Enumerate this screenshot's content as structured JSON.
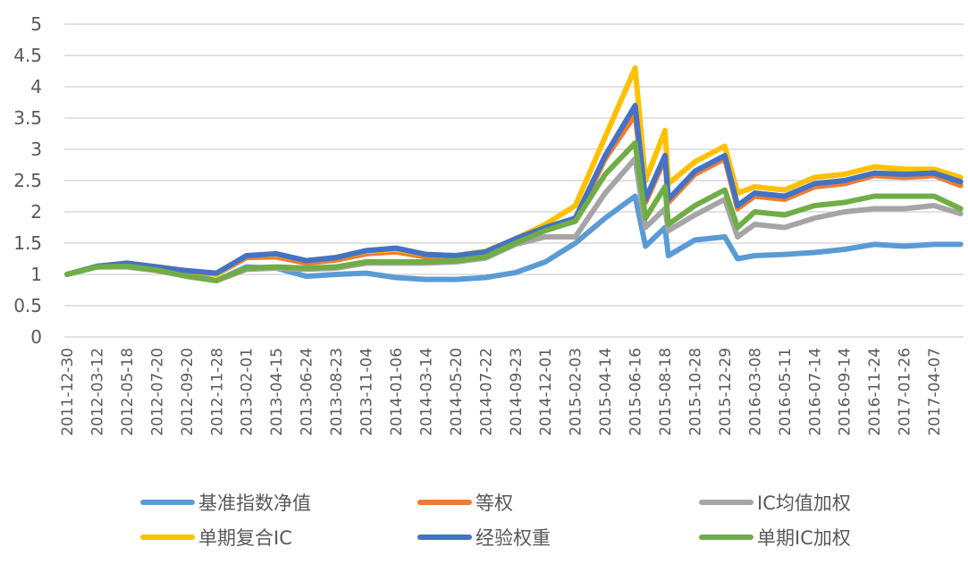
{
  "chart_data": {
    "type": "line",
    "title": "",
    "xlabel": "",
    "ylabel": "",
    "ylim": [
      0,
      5
    ],
    "yticks": [
      "0",
      "0.5",
      "1",
      "1.5",
      "2",
      "2.5",
      "3",
      "3.5",
      "4",
      "4.5",
      "5"
    ],
    "grid": true,
    "legend_position": "bottom",
    "categories": [
      "2011-12-30",
      "2012-03-12",
      "2012-05-18",
      "2012-07-20",
      "2012-09-20",
      "2012-11-28",
      "2013-02-01",
      "2013-04-15",
      "2013-06-24",
      "2013-08-23",
      "2013-11-04",
      "2014-01-06",
      "2014-03-14",
      "2014-05-20",
      "2014-07-22",
      "2014-09-23",
      "2014-12-01",
      "2015-02-03",
      "2015-04-14",
      "2015-06-16",
      "2015-08-18",
      "2015-10-28",
      "2015-12-29",
      "2016-03-08",
      "2016-05-11",
      "2016-07-14",
      "2016-09-14",
      "2016-11-24",
      "2017-01-26",
      "2017-04-07"
    ],
    "x": [
      "2011-12-30",
      "2012-03-12",
      "2012-05-18",
      "2012-07-20",
      "2012-09-20",
      "2012-11-28",
      "2013-02-01",
      "2013-04-15",
      "2013-06-24",
      "2013-08-23",
      "2013-11-04",
      "2014-01-06",
      "2014-03-14",
      "2014-05-20",
      "2014-07-22",
      "2014-09-23",
      "2014-12-01",
      "2015-02-03",
      "2015-04-14",
      "2015-06-16",
      "2015-07-08",
      "2015-08-18",
      "2015-08-26",
      "2015-10-28",
      "2015-12-29",
      "2016-01-28",
      "2016-03-08",
      "2016-05-11",
      "2016-07-14",
      "2016-09-14",
      "2016-11-24",
      "2017-01-26",
      "2017-04-07",
      "2017-06-09"
    ],
    "series": [
      {
        "name": "基准指数净值",
        "color": "#5B9BD5",
        "values": [
          1.0,
          1.12,
          1.15,
          1.08,
          1.0,
          0.9,
          1.12,
          1.1,
          0.97,
          1.0,
          1.02,
          0.95,
          0.92,
          0.92,
          0.95,
          1.03,
          1.2,
          1.5,
          1.9,
          2.25,
          1.45,
          1.75,
          1.3,
          1.55,
          1.6,
          1.25,
          1.3,
          1.32,
          1.35,
          1.4,
          1.48,
          1.45,
          1.48,
          1.48
        ]
      },
      {
        "name": "等权",
        "color": "#ED7D31",
        "values": [
          1.0,
          1.13,
          1.17,
          1.12,
          1.05,
          1.0,
          1.27,
          1.28,
          1.18,
          1.23,
          1.33,
          1.36,
          1.28,
          1.27,
          1.33,
          1.53,
          1.72,
          1.85,
          2.85,
          3.55,
          2.15,
          2.85,
          2.15,
          2.6,
          2.85,
          2.05,
          2.25,
          2.2,
          2.4,
          2.45,
          2.58,
          2.55,
          2.58,
          2.42
        ]
      },
      {
        "name": "IC均值加权",
        "color": "#A5A5A5",
        "values": [
          1.0,
          1.12,
          1.12,
          1.06,
          0.97,
          0.9,
          1.08,
          1.1,
          1.08,
          1.1,
          1.18,
          1.18,
          1.18,
          1.2,
          1.26,
          1.48,
          1.6,
          1.6,
          2.3,
          2.85,
          1.75,
          2.05,
          1.7,
          1.95,
          2.2,
          1.6,
          1.8,
          1.75,
          1.9,
          2.0,
          2.05,
          2.05,
          2.1,
          1.97
        ]
      },
      {
        "name": "单期复合IC",
        "color": "#FFC000",
        "values": [
          1.0,
          1.13,
          1.18,
          1.12,
          1.06,
          1.0,
          1.3,
          1.32,
          1.22,
          1.27,
          1.37,
          1.4,
          1.32,
          1.3,
          1.37,
          1.57,
          1.8,
          2.1,
          3.2,
          4.3,
          2.5,
          3.3,
          2.45,
          2.8,
          3.05,
          2.3,
          2.4,
          2.35,
          2.55,
          2.6,
          2.72,
          2.68,
          2.68,
          2.55
        ]
      },
      {
        "name": "经验权重",
        "color": "#4472C4",
        "values": [
          1.0,
          1.13,
          1.18,
          1.12,
          1.06,
          1.02,
          1.3,
          1.33,
          1.22,
          1.27,
          1.38,
          1.42,
          1.32,
          1.3,
          1.36,
          1.57,
          1.75,
          1.9,
          2.9,
          3.7,
          2.2,
          2.9,
          2.2,
          2.65,
          2.9,
          2.1,
          2.3,
          2.25,
          2.45,
          2.5,
          2.62,
          2.6,
          2.62,
          2.48
        ]
      },
      {
        "name": "单期IC加权",
        "color": "#70AD47",
        "values": [
          1.0,
          1.12,
          1.13,
          1.07,
          0.97,
          0.9,
          1.1,
          1.12,
          1.1,
          1.12,
          1.2,
          1.2,
          1.2,
          1.22,
          1.28,
          1.5,
          1.7,
          1.85,
          2.6,
          3.1,
          1.9,
          2.4,
          1.8,
          2.1,
          2.35,
          1.75,
          2.0,
          1.95,
          2.1,
          2.15,
          2.25,
          2.25,
          2.25,
          2.05
        ]
      }
    ],
    "legend_order": [
      0,
      1,
      2,
      3,
      4,
      5
    ]
  }
}
